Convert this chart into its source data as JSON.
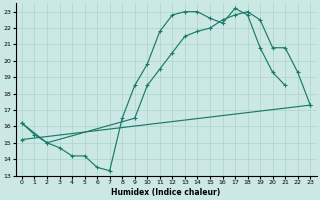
{
  "xlabel": "Humidex (Indice chaleur)",
  "background_color": "#cce8e4",
  "grid_color": "#aad4cc",
  "line_color": "#1a7a6a",
  "xlim": [
    -0.5,
    23.5
  ],
  "ylim": [
    13,
    23.5
  ],
  "yticks": [
    13,
    14,
    15,
    16,
    17,
    18,
    19,
    20,
    21,
    22,
    23
  ],
  "xticks": [
    0,
    1,
    2,
    3,
    4,
    5,
    6,
    7,
    8,
    9,
    10,
    11,
    12,
    13,
    14,
    15,
    16,
    17,
    18,
    19,
    20,
    21,
    22,
    23
  ],
  "line1_x": [
    0,
    1,
    2,
    3,
    4,
    5,
    6,
    7,
    8,
    9,
    10,
    11,
    12,
    13,
    14,
    15,
    16,
    17,
    18,
    19,
    20,
    21
  ],
  "line1_y": [
    16.2,
    15.5,
    15.0,
    14.7,
    14.2,
    14.2,
    13.5,
    13.3,
    16.5,
    18.5,
    19.8,
    21.8,
    22.8,
    23.0,
    23.0,
    22.6,
    22.3,
    23.2,
    22.8,
    20.8,
    19.3,
    18.5
  ],
  "line2_x": [
    0,
    2,
    9,
    10,
    11,
    12,
    13,
    14,
    15,
    16,
    17,
    18,
    19,
    20,
    21,
    22,
    23
  ],
  "line2_y": [
    16.2,
    15.0,
    16.5,
    18.5,
    19.5,
    20.5,
    21.5,
    21.8,
    22.0,
    22.5,
    22.8,
    23.0,
    22.5,
    20.8,
    20.8,
    19.3,
    17.3
  ],
  "line3_x": [
    0,
    23
  ],
  "line3_y": [
    15.2,
    17.3
  ]
}
